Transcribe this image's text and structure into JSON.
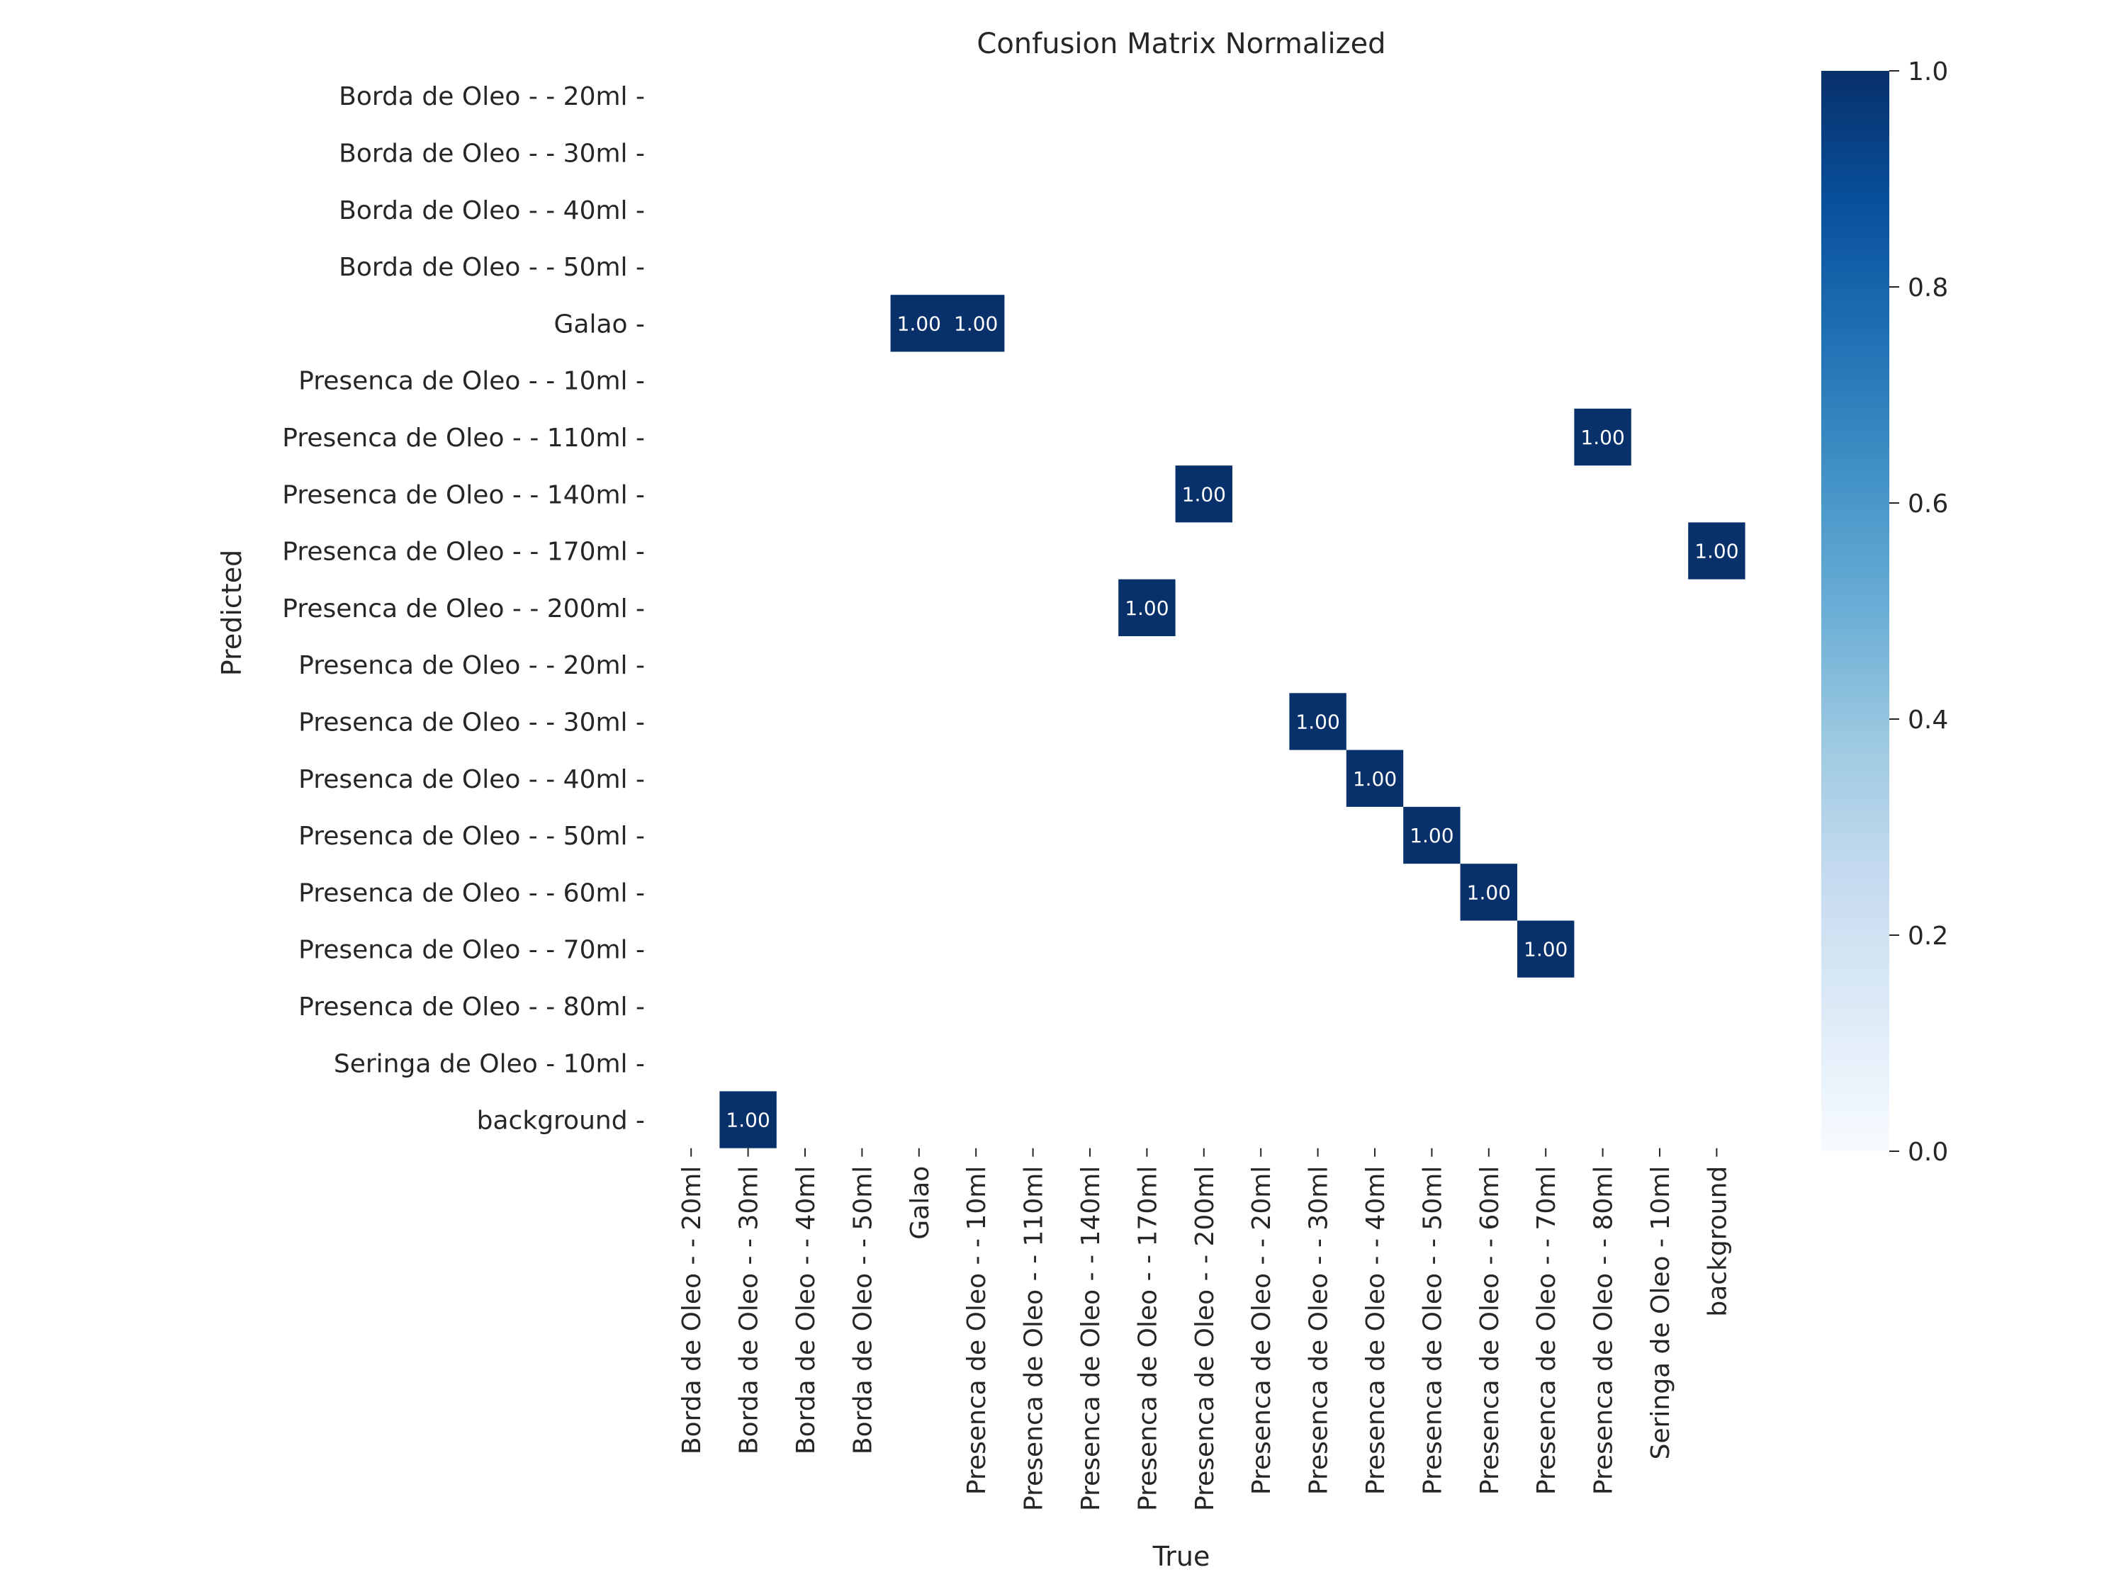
{
  "chart_data": {
    "type": "heatmap",
    "title": "Confusion Matrix Normalized",
    "xlabel": "True",
    "ylabel": "Predicted",
    "x_categories": [
      "Borda de Oleo - - 20ml",
      "Borda de Oleo - - 30ml",
      "Borda de Oleo - - 40ml",
      "Borda de Oleo - - 50ml",
      "Galao",
      "Presenca de Oleo - - 10ml",
      "Presenca de Oleo - - 110ml",
      "Presenca de Oleo - - 140ml",
      "Presenca de Oleo - - 170ml",
      "Presenca de Oleo - - 200ml",
      "Presenca de Oleo - - 20ml",
      "Presenca de Oleo - - 30ml",
      "Presenca de Oleo - - 40ml",
      "Presenca de Oleo - - 50ml",
      "Presenca de Oleo - - 60ml",
      "Presenca de Oleo - - 70ml",
      "Presenca de Oleo - - 80ml",
      "Seringa de Oleo - 10ml",
      "background"
    ],
    "y_categories": [
      "Borda de Oleo - - 20ml",
      "Borda de Oleo - - 30ml",
      "Borda de Oleo - - 40ml",
      "Borda de Oleo - - 50ml",
      "Galao",
      "Presenca de Oleo - - 10ml",
      "Presenca de Oleo - - 110ml",
      "Presenca de Oleo - - 140ml",
      "Presenca de Oleo - - 170ml",
      "Presenca de Oleo - - 200ml",
      "Presenca de Oleo - - 20ml",
      "Presenca de Oleo - - 30ml",
      "Presenca de Oleo - - 40ml",
      "Presenca de Oleo - - 50ml",
      "Presenca de Oleo - - 60ml",
      "Presenca de Oleo - - 70ml",
      "Presenca de Oleo - - 80ml",
      "Seringa de Oleo - 10ml",
      "background"
    ],
    "cells": [
      {
        "true": "Galao",
        "predicted": "Galao",
        "value": 1.0,
        "label": "1.00"
      },
      {
        "true": "Presenca de Oleo - - 10ml",
        "predicted": "Galao",
        "value": 1.0,
        "label": "1.00"
      },
      {
        "true": "Presenca de Oleo - - 80ml",
        "predicted": "Presenca de Oleo - - 110ml",
        "value": 1.0,
        "label": "1.00"
      },
      {
        "true": "Presenca de Oleo - - 200ml",
        "predicted": "Presenca de Oleo - - 140ml",
        "value": 1.0,
        "label": "1.00"
      },
      {
        "true": "background",
        "predicted": "Presenca de Oleo - - 170ml",
        "value": 1.0,
        "label": "1.00"
      },
      {
        "true": "Presenca de Oleo - - 170ml",
        "predicted": "Presenca de Oleo - - 200ml",
        "value": 1.0,
        "label": "1.00"
      },
      {
        "true": "Presenca de Oleo - - 30ml",
        "predicted": "Presenca de Oleo - - 30ml",
        "value": 1.0,
        "label": "1.00"
      },
      {
        "true": "Presenca de Oleo - - 40ml",
        "predicted": "Presenca de Oleo - - 40ml",
        "value": 1.0,
        "label": "1.00"
      },
      {
        "true": "Presenca de Oleo - - 50ml",
        "predicted": "Presenca de Oleo - - 50ml",
        "value": 1.0,
        "label": "1.00"
      },
      {
        "true": "Presenca de Oleo - - 60ml",
        "predicted": "Presenca de Oleo - - 60ml",
        "value": 1.0,
        "label": "1.00"
      },
      {
        "true": "Presenca de Oleo - - 70ml",
        "predicted": "Presenca de Oleo - - 70ml",
        "value": 1.0,
        "label": "1.00"
      },
      {
        "true": "Borda de Oleo - - 30ml",
        "predicted": "background",
        "value": 1.0,
        "label": "1.00"
      }
    ],
    "vmin": 0.0,
    "vmax": 1.0,
    "colorbar": {
      "ticks": [
        0.0,
        0.2,
        0.4,
        0.6,
        0.8,
        1.0
      ],
      "tick_labels": [
        "0.0",
        "0.2",
        "0.4",
        "0.6",
        "0.8",
        "1.0"
      ]
    },
    "colormap": "Blues",
    "cell_color_max": "#08306b",
    "cell_text_color": "#ffffff"
  }
}
